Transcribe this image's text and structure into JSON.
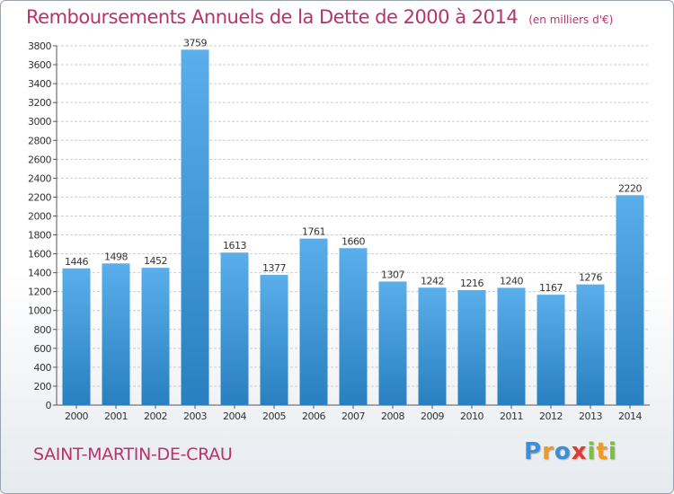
{
  "title": "Remboursements Annuels de la Dette de 2000 à 2014",
  "subtitle": "(en milliers d'€)",
  "commune": "SAINT-MARTIN-DE-CRAU",
  "logo": {
    "text": "Proxiti",
    "letters": [
      {
        "ch": "P",
        "color": "#3a8fd6"
      },
      {
        "ch": "r",
        "color": "#f39a1e"
      },
      {
        "ch": "o",
        "color": "#3a8fd6"
      },
      {
        "ch": "x",
        "color": "#e23a2e"
      },
      {
        "ch": "i",
        "color": "#7cbf3a"
      },
      {
        "ch": "t",
        "color": "#f39a1e"
      },
      {
        "ch": "i",
        "color": "#7cbf3a"
      }
    ]
  },
  "colors": {
    "title": "#b8336a",
    "bar_top": "#5aaeea",
    "bar_bottom": "#2a7fc0",
    "grid": "#c9ced4"
  },
  "chart_data": {
    "type": "bar",
    "title": "Remboursements Annuels de la Dette de 2000 à 2014",
    "subtitle": "(en milliers d'€)",
    "categories": [
      "2000",
      "2001",
      "2002",
      "2003",
      "2004",
      "2005",
      "2006",
      "2007",
      "2008",
      "2009",
      "2010",
      "2011",
      "2012",
      "2013",
      "2014"
    ],
    "values": [
      1446,
      1498,
      1452,
      3759,
      1613,
      1377,
      1761,
      1660,
      1307,
      1242,
      1216,
      1240,
      1167,
      1276,
      2220
    ],
    "ylim": [
      0,
      3800
    ],
    "ytick_step": 200,
    "grid": true,
    "data_labels": true
  }
}
